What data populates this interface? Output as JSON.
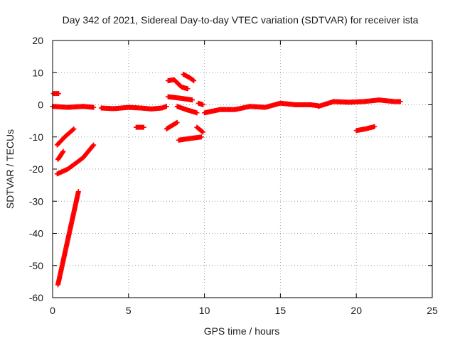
{
  "chart_data": {
    "type": "scatter",
    "title": "Day 342 of 2021, Sidereal Day-to-day VTEC variation (SDTVAR) for receiver ista",
    "xlabel": "GPS time / hours",
    "ylabel": "SDTVAR / TECUs",
    "xlim": [
      0,
      25
    ],
    "ylim": [
      -60,
      20
    ],
    "x_ticks": [
      "0",
      "5",
      "10",
      "15",
      "20",
      "25"
    ],
    "y_ticks": [
      "20",
      "10",
      "0",
      "-10",
      "-20",
      "-30",
      "-40",
      "-50",
      "-60"
    ],
    "grid": true,
    "marker": "+",
    "series": [
      {
        "name": "ista",
        "color": "#ff0000",
        "segments": [
          {
            "x": [
              0.05,
              0.4
            ],
            "y": [
              3.5,
              3.5
            ]
          },
          {
            "x": [
              0.0,
              1.0,
              2.0,
              2.7
            ],
            "y": [
              -0.5,
              -0.8,
              -0.5,
              -0.8
            ]
          },
          {
            "x": [
              3.2,
              4.0,
              5.0,
              5.8,
              6.5,
              7.2,
              7.5
            ],
            "y": [
              -1.0,
              -1.2,
              -0.8,
              -1.0,
              -1.3,
              -1.0,
              -0.5
            ]
          },
          {
            "x": [
              5.5,
              6.0
            ],
            "y": [
              -7.0,
              -7.0
            ]
          },
          {
            "x": [
              0.3,
              0.8,
              1.4
            ],
            "y": [
              -12.5,
              -10.0,
              -7.5
            ]
          },
          {
            "x": [
              0.35,
              0.7
            ],
            "y": [
              -17.0,
              -14.5
            ]
          },
          {
            "x": [
              0.3,
              1.0,
              2.0,
              2.7
            ],
            "y": [
              -21.5,
              -20.0,
              -16.5,
              -12.5
            ]
          },
          {
            "x": [
              0.35,
              1.0,
              1.7
            ],
            "y": [
              -56.0,
              -42.0,
              -27.0
            ]
          },
          {
            "x": [
              7.5,
              8.2
            ],
            "y": [
              -7.5,
              -5.5
            ]
          },
          {
            "x": [
              7.6,
              8.0,
              8.5,
              8.9
            ],
            "y": [
              7.5,
              7.8,
              5.5,
              5.0
            ]
          },
          {
            "x": [
              8.6,
              9.0,
              9.3
            ],
            "y": [
              9.5,
              8.5,
              7.5
            ]
          },
          {
            "x": [
              7.6,
              8.5,
              9.2
            ],
            "y": [
              2.5,
              2.0,
              1.5
            ]
          },
          {
            "x": [
              8.2,
              8.8,
              9.5
            ],
            "y": [
              -0.5,
              -1.5,
              -2.5
            ]
          },
          {
            "x": [
              8.3,
              9.0,
              9.8
            ],
            "y": [
              -11.0,
              -10.5,
              -10.0
            ]
          },
          {
            "x": [
              9.5,
              9.9
            ],
            "y": [
              -7.0,
              -8.5
            ]
          },
          {
            "x": [
              9.6,
              9.9
            ],
            "y": [
              0.5,
              0.0
            ]
          },
          {
            "x": [
              10.0,
              11.0,
              12.0,
              13.0,
              14.0,
              15.0,
              16.0,
              17.0,
              17.5
            ],
            "y": [
              -2.5,
              -1.5,
              -1.5,
              -0.5,
              -0.8,
              0.5,
              0.0,
              0.0,
              -0.3
            ]
          },
          {
            "x": [
              17.5,
              18.5,
              19.5,
              20.5,
              21.5,
              22.5,
              22.9
            ],
            "y": [
              -0.5,
              1.0,
              0.8,
              1.0,
              1.5,
              1.0,
              1.0
            ]
          },
          {
            "x": [
              20.0,
              20.6,
              21.2
            ],
            "y": [
              -8.0,
              -7.5,
              -6.8
            ]
          }
        ]
      }
    ]
  }
}
